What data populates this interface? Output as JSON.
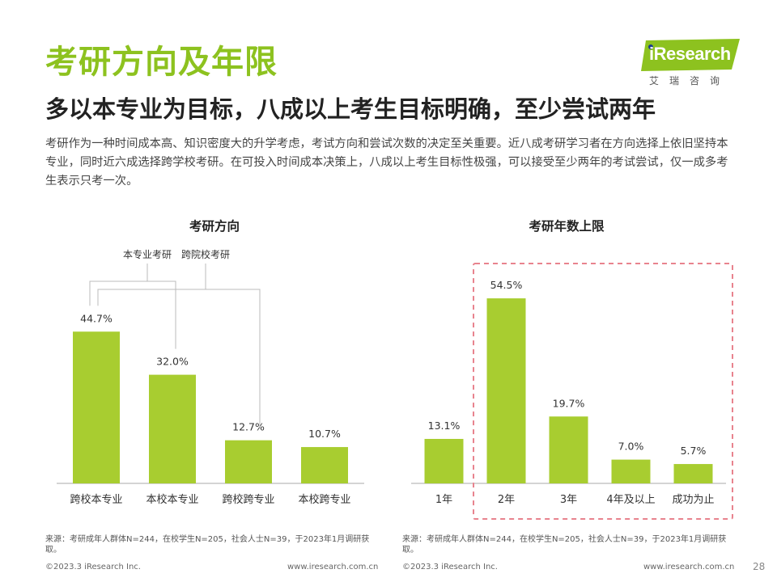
{
  "header": {
    "title": "考研方向及年限",
    "subtitle": "多以本专业为目标，八成以上考生目标明确，至少尝试两年",
    "body": "考研作为一种时间成本高、知识密度大的升学考虑，考试方向和尝试次数的决定至关重要。近八成考研学习者在方向选择上依旧坚持本专业，同时近六成选择跨学校考研。在可投入时间成本决策上，八成以上考生目标性极强，可以接受至少两年的考试尝试，仅一成多考生表示只考一次。"
  },
  "logo": {
    "text": "iResearch",
    "sub": "艾瑞咨询"
  },
  "colors": {
    "accent": "#8dc21f",
    "bar": "#a8cd30",
    "dashed_box": "#e8838e",
    "bracket": "#bbbbbb"
  },
  "chart_data": [
    {
      "type": "bar",
      "title": "考研方向",
      "categories": [
        "跨校本专业",
        "本校本专业",
        "跨校跨专业",
        "本校跨专业"
      ],
      "values": [
        44.7,
        32.0,
        12.7,
        10.7
      ],
      "value_labels": [
        "44.7%",
        "32.0%",
        "12.7%",
        "10.7%"
      ],
      "ylim": [
        0,
        60
      ],
      "annotations": [
        {
          "text": "本专业考研",
          "groups": [
            0,
            1
          ]
        },
        {
          "text": "跨院校考研",
          "groups": [
            0,
            2
          ]
        }
      ]
    },
    {
      "type": "bar",
      "title": "考研年数上限",
      "categories": [
        "1年",
        "2年",
        "3年",
        "4年及以上",
        "成功为止"
      ],
      "values": [
        13.1,
        54.5,
        19.7,
        7.0,
        5.7
      ],
      "value_labels": [
        "13.1%",
        "54.5%",
        "19.7%",
        "7.0%",
        "5.7%"
      ],
      "ylim": [
        0,
        60
      ],
      "highlight": [
        1,
        4
      ]
    }
  ],
  "sources": {
    "left": "来源：考研成年人群体N=244，在校学生N=205，社会人士N=39，于2023年1月调研获取。",
    "right": "来源：考研成年人群体N=244，在校学生N=205，社会人士N=39，于2023年1月调研获取。"
  },
  "footer": {
    "copyright_left": "©2023.3 iResearch Inc.",
    "url_left": "www.iresearch.com.cn",
    "copyright_right": "©2023.3 iResearch Inc.",
    "url_right": "www.iresearch.com.cn",
    "page": "28"
  }
}
